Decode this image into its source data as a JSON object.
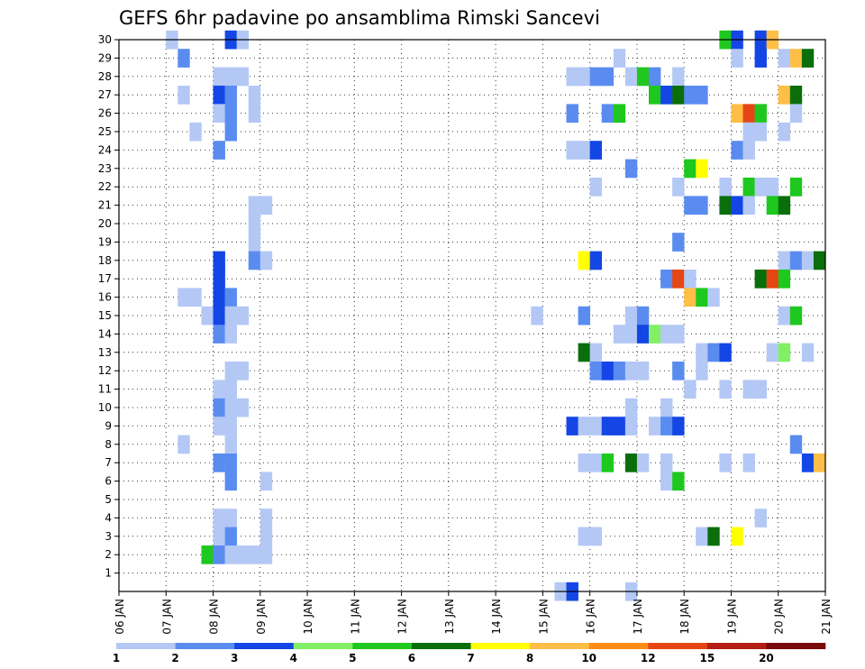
{
  "chart_data": {
    "type": "heatmap",
    "title": "GEFS 6hr padavine po ansamblima Rimski Sancevi",
    "x_ticks": [
      "06 JAN",
      "07 JAN",
      "08 JAN",
      "09 JAN",
      "10 JAN",
      "11 JAN",
      "12 JAN",
      "13 JAN",
      "14 JAN",
      "15 JAN",
      "16 JAN",
      "17 JAN",
      "18 JAN",
      "19 JAN",
      "20 JAN",
      "21 JAN"
    ],
    "y_ticks": [
      "1",
      "2",
      "3",
      "4",
      "5",
      "6",
      "7",
      "8",
      "9",
      "10",
      "11",
      "12",
      "13",
      "14",
      "15",
      "16",
      "17",
      "18",
      "19",
      "20",
      "21",
      "22",
      "23",
      "24",
      "25",
      "26",
      "27",
      "28",
      "29",
      "30"
    ],
    "x_range": [
      "06 JAN",
      "21 JAN"
    ],
    "y_range": [
      0,
      30
    ],
    "grid": true,
    "units": "6-hourly steps, 4 per day",
    "colorbar": {
      "labels": [
        "1",
        "2",
        "3",
        "4",
        "5",
        "6",
        "7",
        "8",
        "10",
        "12",
        "15",
        "20"
      ],
      "colors": [
        "#b4c8f5",
        "#5a8cf0",
        "#1446e6",
        "#82f064",
        "#1ec81e",
        "#0a6e0a",
        "#ffff00",
        "#ffbe46",
        "#ff8c14",
        "#e64614",
        "#b41e14",
        "#780a0a"
      ]
    },
    "cells": [
      {
        "m": 30,
        "d": 1.0,
        "v": 1
      },
      {
        "m": 30,
        "d": 2.25,
        "v": 3
      },
      {
        "m": 30,
        "d": 2.5,
        "v": 1
      },
      {
        "m": 30,
        "d": 12.75,
        "v": 5
      },
      {
        "m": 30,
        "d": 13.0,
        "v": 3
      },
      {
        "m": 30,
        "d": 13.5,
        "v": 3
      },
      {
        "m": 30,
        "d": 13.75,
        "v": 8
      },
      {
        "m": 29,
        "d": 1.25,
        "v": 2
      },
      {
        "m": 29,
        "d": 10.5,
        "v": 1
      },
      {
        "m": 29,
        "d": 13.0,
        "v": 1
      },
      {
        "m": 29,
        "d": 13.5,
        "v": 3
      },
      {
        "m": 29,
        "d": 14.0,
        "v": 1
      },
      {
        "m": 29,
        "d": 14.25,
        "v": 8
      },
      {
        "m": 29,
        "d": 14.5,
        "v": 6
      },
      {
        "m": 28,
        "d": 2.0,
        "v": 1
      },
      {
        "m": 28,
        "d": 2.25,
        "v": 1
      },
      {
        "m": 28,
        "d": 2.5,
        "v": 1
      },
      {
        "m": 28,
        "d": 9.5,
        "v": 1
      },
      {
        "m": 28,
        "d": 9.75,
        "v": 1
      },
      {
        "m": 28,
        "d": 10.0,
        "v": 2
      },
      {
        "m": 28,
        "d": 10.25,
        "v": 2
      },
      {
        "m": 28,
        "d": 10.75,
        "v": 1
      },
      {
        "m": 28,
        "d": 11.0,
        "v": 5
      },
      {
        "m": 28,
        "d": 11.25,
        "v": 2
      },
      {
        "m": 28,
        "d": 11.75,
        "v": 1
      },
      {
        "m": 27,
        "d": 1.25,
        "v": 1
      },
      {
        "m": 27,
        "d": 2.0,
        "v": 3
      },
      {
        "m": 27,
        "d": 2.25,
        "v": 2
      },
      {
        "m": 27,
        "d": 2.75,
        "v": 1
      },
      {
        "m": 27,
        "d": 11.25,
        "v": 5
      },
      {
        "m": 27,
        "d": 11.5,
        "v": 3
      },
      {
        "m": 27,
        "d": 11.75,
        "v": 6
      },
      {
        "m": 27,
        "d": 12.0,
        "v": 2
      },
      {
        "m": 27,
        "d": 12.25,
        "v": 2
      },
      {
        "m": 27,
        "d": 14.0,
        "v": 8
      },
      {
        "m": 27,
        "d": 14.25,
        "v": 6
      },
      {
        "m": 26,
        "d": 2.0,
        "v": 1
      },
      {
        "m": 26,
        "d": 2.25,
        "v": 2
      },
      {
        "m": 26,
        "d": 2.75,
        "v": 1
      },
      {
        "m": 26,
        "d": 9.5,
        "v": 2
      },
      {
        "m": 26,
        "d": 10.25,
        "v": 2
      },
      {
        "m": 26,
        "d": 10.5,
        "v": 5
      },
      {
        "m": 26,
        "d": 13.0,
        "v": 8
      },
      {
        "m": 26,
        "d": 13.25,
        "v": 10
      },
      {
        "m": 26,
        "d": 13.5,
        "v": 5
      },
      {
        "m": 26,
        "d": 14.25,
        "v": 1
      },
      {
        "m": 25,
        "d": 1.5,
        "v": 1
      },
      {
        "m": 25,
        "d": 2.25,
        "v": 2
      },
      {
        "m": 25,
        "d": 13.25,
        "v": 1
      },
      {
        "m": 25,
        "d": 13.5,
        "v": 1
      },
      {
        "m": 25,
        "d": 14.0,
        "v": 1
      },
      {
        "m": 24,
        "d": 2.0,
        "v": 2
      },
      {
        "m": 24,
        "d": 9.5,
        "v": 1
      },
      {
        "m": 24,
        "d": 9.75,
        "v": 1
      },
      {
        "m": 24,
        "d": 10.0,
        "v": 3
      },
      {
        "m": 24,
        "d": 13.0,
        "v": 2
      },
      {
        "m": 24,
        "d": 13.25,
        "v": 1
      },
      {
        "m": 23,
        "d": 10.75,
        "v": 2
      },
      {
        "m": 23,
        "d": 12.0,
        "v": 5
      },
      {
        "m": 23,
        "d": 12.25,
        "v": 7
      },
      {
        "m": 22,
        "d": 10.0,
        "v": 1
      },
      {
        "m": 22,
        "d": 11.75,
        "v": 1
      },
      {
        "m": 22,
        "d": 12.75,
        "v": 1
      },
      {
        "m": 22,
        "d": 13.25,
        "v": 5
      },
      {
        "m": 22,
        "d": 13.5,
        "v": 1
      },
      {
        "m": 22,
        "d": 13.75,
        "v": 1
      },
      {
        "m": 22,
        "d": 14.25,
        "v": 5
      },
      {
        "m": 21,
        "d": 2.75,
        "v": 1
      },
      {
        "m": 21,
        "d": 3.0,
        "v": 1
      },
      {
        "m": 21,
        "d": 12.0,
        "v": 2
      },
      {
        "m": 21,
        "d": 12.25,
        "v": 2
      },
      {
        "m": 21,
        "d": 12.75,
        "v": 6
      },
      {
        "m": 21,
        "d": 13.0,
        "v": 3
      },
      {
        "m": 21,
        "d": 13.25,
        "v": 1
      },
      {
        "m": 21,
        "d": 13.75,
        "v": 5
      },
      {
        "m": 21,
        "d": 14.0,
        "v": 6
      },
      {
        "m": 20,
        "d": 2.75,
        "v": 1
      },
      {
        "m": 19,
        "d": 2.75,
        "v": 1
      },
      {
        "m": 19,
        "d": 11.75,
        "v": 2
      },
      {
        "m": 18,
        "d": 2.0,
        "v": 3
      },
      {
        "m": 18,
        "d": 2.75,
        "v": 2
      },
      {
        "m": 18,
        "d": 3.0,
        "v": 1
      },
      {
        "m": 18,
        "d": 9.75,
        "v": 7
      },
      {
        "m": 18,
        "d": 10.0,
        "v": 3
      },
      {
        "m": 18,
        "d": 14.0,
        "v": 1
      },
      {
        "m": 18,
        "d": 14.25,
        "v": 2
      },
      {
        "m": 18,
        "d": 14.5,
        "v": 1
      },
      {
        "m": 18,
        "d": 14.75,
        "v": 6
      },
      {
        "m": 17,
        "d": 2.0,
        "v": 3
      },
      {
        "m": 17,
        "d": 11.5,
        "v": 2
      },
      {
        "m": 17,
        "d": 11.75,
        "v": 10
      },
      {
        "m": 17,
        "d": 12.0,
        "v": 1
      },
      {
        "m": 17,
        "d": 13.5,
        "v": 6
      },
      {
        "m": 17,
        "d": 13.75,
        "v": 10
      },
      {
        "m": 17,
        "d": 14.0,
        "v": 5
      },
      {
        "m": 16,
        "d": 1.25,
        "v": 1
      },
      {
        "m": 16,
        "d": 1.5,
        "v": 1
      },
      {
        "m": 16,
        "d": 2.0,
        "v": 3
      },
      {
        "m": 16,
        "d": 2.25,
        "v": 2
      },
      {
        "m": 16,
        "d": 12.0,
        "v": 8
      },
      {
        "m": 16,
        "d": 12.25,
        "v": 5
      },
      {
        "m": 16,
        "d": 12.5,
        "v": 1
      },
      {
        "m": 15,
        "d": 1.75,
        "v": 1
      },
      {
        "m": 15,
        "d": 2.0,
        "v": 3
      },
      {
        "m": 15,
        "d": 2.25,
        "v": 1
      },
      {
        "m": 15,
        "d": 2.5,
        "v": 1
      },
      {
        "m": 15,
        "d": 8.75,
        "v": 1
      },
      {
        "m": 15,
        "d": 9.75,
        "v": 2
      },
      {
        "m": 15,
        "d": 10.75,
        "v": 1
      },
      {
        "m": 15,
        "d": 11.0,
        "v": 2
      },
      {
        "m": 15,
        "d": 14.0,
        "v": 1
      },
      {
        "m": 15,
        "d": 14.25,
        "v": 5
      },
      {
        "m": 14,
        "d": 2.0,
        "v": 2
      },
      {
        "m": 14,
        "d": 2.25,
        "v": 1
      },
      {
        "m": 14,
        "d": 10.5,
        "v": 1
      },
      {
        "m": 14,
        "d": 10.75,
        "v": 1
      },
      {
        "m": 14,
        "d": 11.0,
        "v": 3
      },
      {
        "m": 14,
        "d": 11.25,
        "v": 4
      },
      {
        "m": 14,
        "d": 11.5,
        "v": 1
      },
      {
        "m": 14,
        "d": 11.75,
        "v": 1
      },
      {
        "m": 13,
        "d": 9.75,
        "v": 6
      },
      {
        "m": 13,
        "d": 10.0,
        "v": 1
      },
      {
        "m": 13,
        "d": 12.25,
        "v": 1
      },
      {
        "m": 13,
        "d": 12.5,
        "v": 2
      },
      {
        "m": 13,
        "d": 12.75,
        "v": 3
      },
      {
        "m": 13,
        "d": 13.75,
        "v": 1
      },
      {
        "m": 13,
        "d": 14.0,
        "v": 4
      },
      {
        "m": 13,
        "d": 14.5,
        "v": 1
      },
      {
        "m": 12,
        "d": 2.25,
        "v": 1
      },
      {
        "m": 12,
        "d": 2.5,
        "v": 1
      },
      {
        "m": 12,
        "d": 10.0,
        "v": 2
      },
      {
        "m": 12,
        "d": 10.25,
        "v": 3
      },
      {
        "m": 12,
        "d": 10.5,
        "v": 2
      },
      {
        "m": 12,
        "d": 10.75,
        "v": 1
      },
      {
        "m": 12,
        "d": 11.0,
        "v": 1
      },
      {
        "m": 12,
        "d": 11.75,
        "v": 2
      },
      {
        "m": 12,
        "d": 12.25,
        "v": 1
      },
      {
        "m": 11,
        "d": 2.0,
        "v": 1
      },
      {
        "m": 11,
        "d": 2.25,
        "v": 1
      },
      {
        "m": 11,
        "d": 12.0,
        "v": 1
      },
      {
        "m": 11,
        "d": 12.75,
        "v": 1
      },
      {
        "m": 11,
        "d": 13.25,
        "v": 1
      },
      {
        "m": 11,
        "d": 13.5,
        "v": 1
      },
      {
        "m": 10,
        "d": 2.0,
        "v": 2
      },
      {
        "m": 10,
        "d": 2.25,
        "v": 1
      },
      {
        "m": 10,
        "d": 2.5,
        "v": 1
      },
      {
        "m": 10,
        "d": 10.75,
        "v": 1
      },
      {
        "m": 10,
        "d": 11.5,
        "v": 1
      },
      {
        "m": 9,
        "d": 2.0,
        "v": 1
      },
      {
        "m": 9,
        "d": 2.25,
        "v": 1
      },
      {
        "m": 9,
        "d": 9.5,
        "v": 3
      },
      {
        "m": 9,
        "d": 9.75,
        "v": 1
      },
      {
        "m": 9,
        "d": 10.0,
        "v": 1
      },
      {
        "m": 9,
        "d": 10.25,
        "v": 3
      },
      {
        "m": 9,
        "d": 10.5,
        "v": 3
      },
      {
        "m": 9,
        "d": 10.75,
        "v": 1
      },
      {
        "m": 9,
        "d": 11.25,
        "v": 1
      },
      {
        "m": 9,
        "d": 11.5,
        "v": 2
      },
      {
        "m": 9,
        "d": 11.75,
        "v": 3
      },
      {
        "m": 8,
        "d": 1.25,
        "v": 1
      },
      {
        "m": 8,
        "d": 2.25,
        "v": 1
      },
      {
        "m": 8,
        "d": 14.25,
        "v": 2
      },
      {
        "m": 7,
        "d": 2.0,
        "v": 2
      },
      {
        "m": 7,
        "d": 2.25,
        "v": 2
      },
      {
        "m": 7,
        "d": 9.75,
        "v": 1
      },
      {
        "m": 7,
        "d": 10.0,
        "v": 1
      },
      {
        "m": 7,
        "d": 10.25,
        "v": 5
      },
      {
        "m": 7,
        "d": 10.75,
        "v": 6
      },
      {
        "m": 7,
        "d": 11.0,
        "v": 1
      },
      {
        "m": 7,
        "d": 11.5,
        "v": 1
      },
      {
        "m": 7,
        "d": 12.75,
        "v": 1
      },
      {
        "m": 7,
        "d": 13.25,
        "v": 1
      },
      {
        "m": 7,
        "d": 14.5,
        "v": 3
      },
      {
        "m": 7,
        "d": 14.75,
        "v": 8
      },
      {
        "m": 6,
        "d": 2.25,
        "v": 2
      },
      {
        "m": 6,
        "d": 3.0,
        "v": 1
      },
      {
        "m": 6,
        "d": 11.5,
        "v": 1
      },
      {
        "m": 6,
        "d": 11.75,
        "v": 5
      },
      {
        "m": 4,
        "d": 2.0,
        "v": 1
      },
      {
        "m": 4,
        "d": 2.25,
        "v": 1
      },
      {
        "m": 4,
        "d": 3.0,
        "v": 1
      },
      {
        "m": 4,
        "d": 13.5,
        "v": 1
      },
      {
        "m": 3,
        "d": 2.0,
        "v": 1
      },
      {
        "m": 3,
        "d": 2.25,
        "v": 2
      },
      {
        "m": 3,
        "d": 3.0,
        "v": 1
      },
      {
        "m": 3,
        "d": 9.75,
        "v": 1
      },
      {
        "m": 3,
        "d": 10.0,
        "v": 1
      },
      {
        "m": 3,
        "d": 12.25,
        "v": 1
      },
      {
        "m": 3,
        "d": 12.5,
        "v": 6
      },
      {
        "m": 3,
        "d": 13.0,
        "v": 7
      },
      {
        "m": 2,
        "d": 1.75,
        "v": 5
      },
      {
        "m": 2,
        "d": 2.0,
        "v": 2
      },
      {
        "m": 2,
        "d": 2.25,
        "v": 1
      },
      {
        "m": 2,
        "d": 2.5,
        "v": 1
      },
      {
        "m": 2,
        "d": 2.75,
        "v": 1
      },
      {
        "m": 2,
        "d": 3.0,
        "v": 1
      },
      {
        "m": 0,
        "d": 9.25,
        "v": 1
      },
      {
        "m": 0,
        "d": 9.5,
        "v": 3
      },
      {
        "m": 0,
        "d": 10.75,
        "v": 1
      }
    ]
  }
}
